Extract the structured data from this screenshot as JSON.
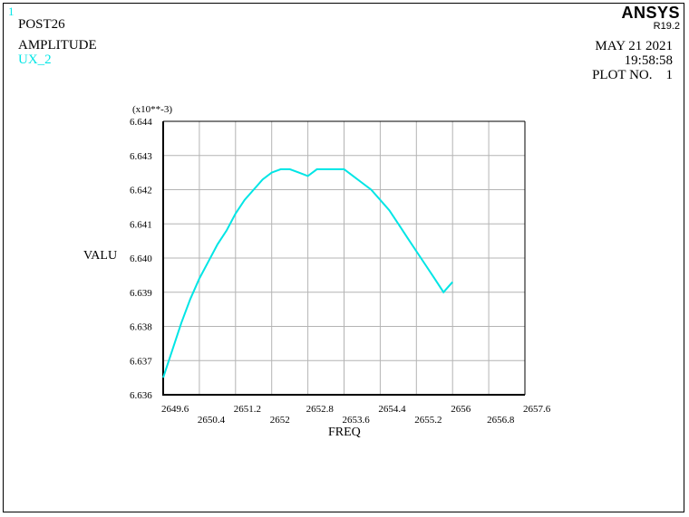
{
  "header": {
    "window_number": "1",
    "program": "POST26",
    "plot_label": "AMPLITUDE",
    "series_label": "UX_2",
    "brand": "ANSYS",
    "release": "R19.2",
    "date": "MAY 21 2021",
    "time": "19:58:58",
    "plot_no": "PLOT NO.    1"
  },
  "colors": {
    "series": "#00e5e5",
    "grid": "#b4b4b4",
    "axis": "#000000"
  },
  "chart_data": {
    "type": "line",
    "xlabel": "FREQ",
    "ylabel": "VALU",
    "y_multiplier_label": "(x10**-3)",
    "xlim": [
      2649.6,
      2657.6
    ],
    "ylim": [
      6.636,
      6.644
    ],
    "grid": true,
    "x_ticks": [
      "2649.6",
      "2650.4",
      "2651.2",
      "2652",
      "2652.8",
      "2653.6",
      "2654.4",
      "2655.2",
      "2656",
      "2656.8",
      "2657.6"
    ],
    "y_ticks": [
      "6.636",
      "6.637",
      "6.638",
      "6.639",
      "6.640",
      "6.641",
      "6.642",
      "6.643",
      "6.644"
    ],
    "series": [
      {
        "name": "UX_2",
        "x": [
          2649.6,
          2649.8,
          2650.0,
          2650.2,
          2650.4,
          2650.6,
          2650.8,
          2651.0,
          2651.2,
          2651.4,
          2651.6,
          2651.8,
          2652.0,
          2652.2,
          2652.4,
          2652.6,
          2652.8,
          2653.0,
          2653.2,
          2653.4,
          2653.6,
          2653.8,
          2654.0,
          2654.2,
          2654.4,
          2654.6,
          2654.8,
          2655.0,
          2655.2,
          2655.4,
          2655.6,
          2655.8,
          2656.0
        ],
        "y": [
          6.6365,
          6.6373,
          6.6381,
          6.6388,
          6.6394,
          6.6399,
          6.6404,
          6.6408,
          6.6413,
          6.6417,
          6.642,
          6.6423,
          6.6425,
          6.6426,
          6.6426,
          6.6425,
          6.6424,
          6.6426,
          6.6426,
          6.6426,
          6.6426,
          6.6424,
          6.6422,
          6.642,
          6.6417,
          6.6414,
          6.641,
          6.6406,
          6.6402,
          6.6398,
          6.6394,
          6.639,
          6.6393
        ]
      }
    ]
  }
}
